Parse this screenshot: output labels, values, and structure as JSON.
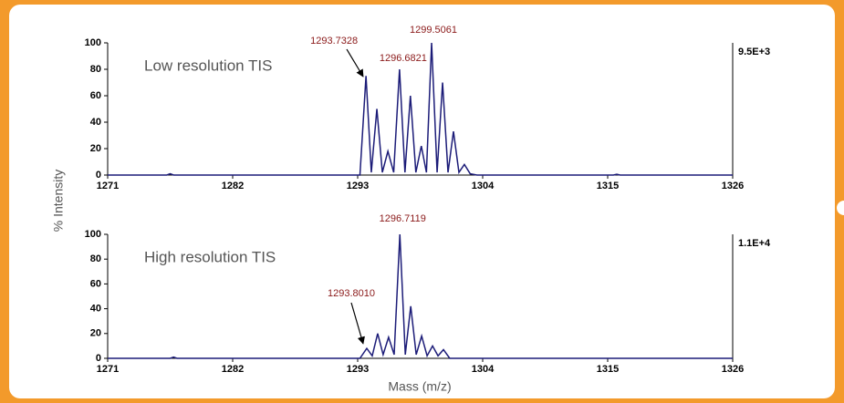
{
  "y_label": "% Intensity",
  "x_label": "Mass (m/z)",
  "chart_data": [
    {
      "type": "line",
      "title": "Low resolution TIS",
      "scale_label": "9.5E+3",
      "x": [
        1271,
        1276.2,
        1276.5,
        1276.8,
        1293.2,
        1293.7328,
        1294.2,
        1294.69,
        1295.17,
        1295.66,
        1296.17,
        1296.6821,
        1297.16,
        1297.64,
        1298.12,
        1298.6,
        1299.05,
        1299.5061,
        1299.99,
        1300.47,
        1300.95,
        1301.43,
        1301.91,
        1302.39,
        1302.9,
        1303.5,
        1315.5,
        1315.8,
        1316.1,
        1326
      ],
      "values": [
        0,
        0,
        1,
        0,
        0,
        75,
        2,
        50,
        2,
        18,
        2,
        80,
        2,
        60,
        2,
        22,
        2,
        100,
        2,
        70,
        2,
        33,
        2,
        8,
        1,
        0,
        0,
        0.6,
        0,
        0
      ],
      "color": "#1c1c78",
      "peak_labels": [
        1293.7328,
        1296.6821,
        1299.5061
      ],
      "xlim": [
        1271,
        1326
      ],
      "xticks": [
        1271,
        1282,
        1293,
        1304,
        1315,
        1326
      ],
      "ylim": [
        0,
        100
      ],
      "yticks": [
        0,
        20,
        40,
        60,
        80,
        100
      ],
      "grid": false
    },
    {
      "type": "line",
      "title": "High resolution TIS",
      "scale_label": "1.1E+4",
      "x": [
        1271,
        1276.5,
        1276.8,
        1277.1,
        1293.2,
        1293.801,
        1294.28,
        1294.76,
        1295.24,
        1295.72,
        1296.21,
        1296.7119,
        1297.19,
        1297.67,
        1298.15,
        1298.63,
        1299.11,
        1299.59,
        1300.07,
        1300.55,
        1301.1,
        1326
      ],
      "values": [
        0,
        0,
        1,
        0,
        0,
        8,
        2,
        20,
        3,
        17,
        3,
        100,
        3,
        42,
        3,
        18,
        2,
        10,
        2,
        7,
        0,
        0
      ],
      "color": "#1c1c78",
      "peak_labels": [
        {
          "value": 1293.801,
          "label": "1293.8010"
        },
        1296.7119
      ],
      "xlim": [
        1271,
        1326
      ],
      "xticks": [
        1271,
        1282,
        1293,
        1304,
        1315,
        1326
      ],
      "ylim": [
        0,
        100
      ],
      "yticks": [
        0,
        20,
        40,
        60,
        80,
        100
      ],
      "grid": false
    }
  ]
}
